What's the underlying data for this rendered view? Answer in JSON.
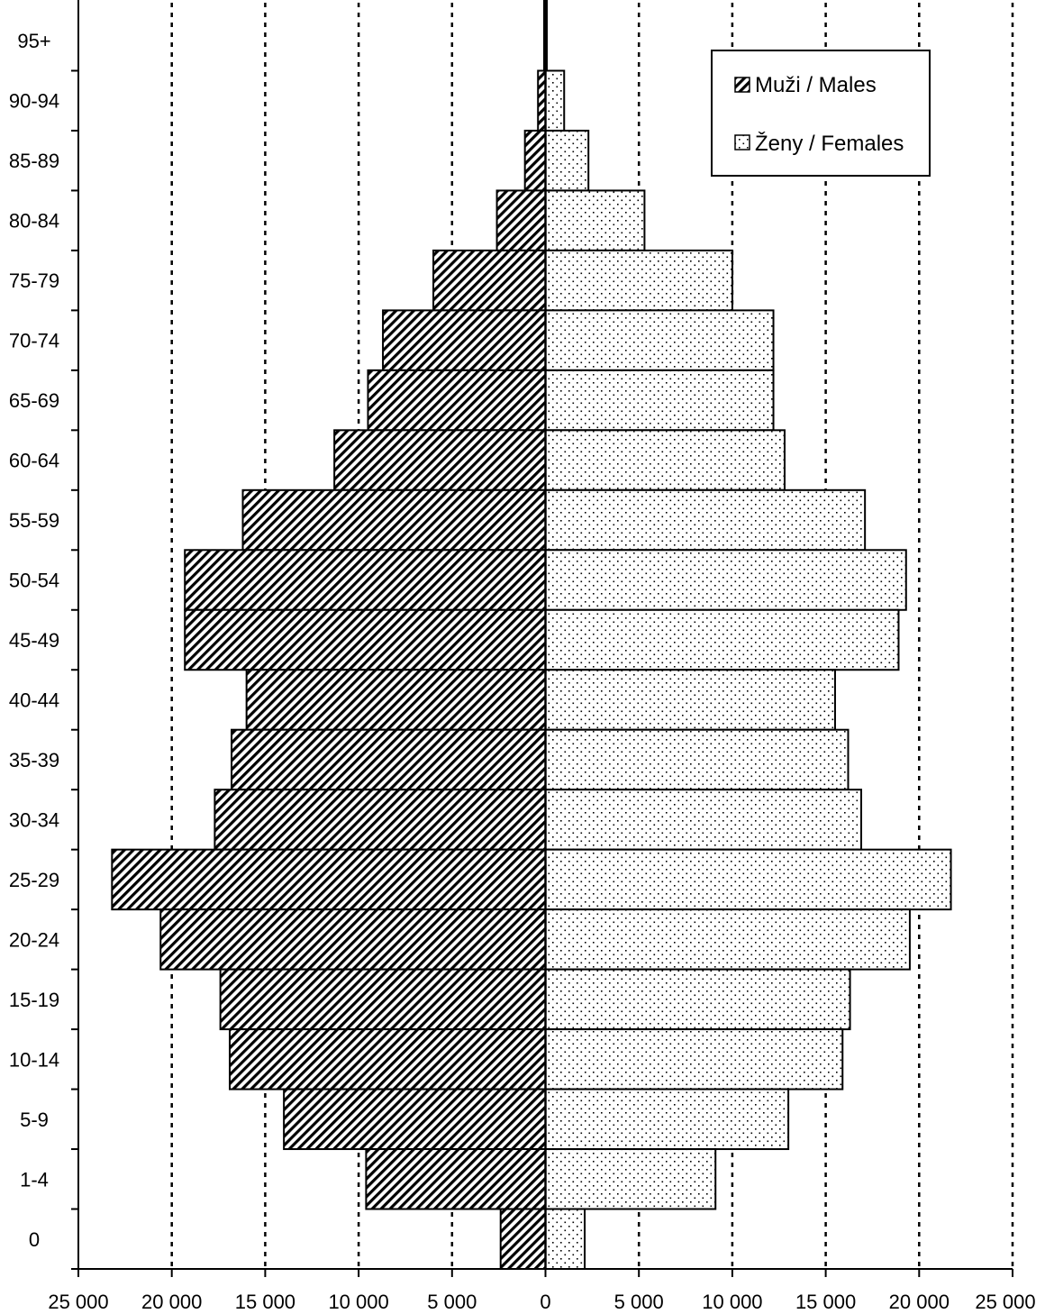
{
  "chart_data": {
    "type": "bar",
    "orientation": "horizontal",
    "title": "",
    "categories": [
      "95+",
      "90-94",
      "85-89",
      "80-84",
      "75-79",
      "70-74",
      "65-69",
      "60-64",
      "55-59",
      "50-54",
      "45-49",
      "40-44",
      "35-39",
      "30-34",
      "25-29",
      "20-24",
      "15-19",
      "10-14",
      "5-9",
      "1-4",
      "0"
    ],
    "series": [
      {
        "name": "Muži / Males",
        "side": "left",
        "pattern": "diagonal-hatch",
        "values": [
          50,
          400,
          1100,
          2600,
          6000,
          8700,
          9500,
          11300,
          16200,
          19300,
          19300,
          16000,
          16800,
          17700,
          23200,
          20600,
          17400,
          16900,
          14000,
          9600,
          2400
        ]
      },
      {
        "name": "Ženy / Females",
        "side": "right",
        "pattern": "dotted",
        "values": [
          50,
          1000,
          2300,
          5300,
          10000,
          12200,
          12200,
          12800,
          17100,
          19300,
          18900,
          15500,
          16200,
          16900,
          21700,
          19500,
          16300,
          15900,
          13000,
          9100,
          2100
        ]
      }
    ],
    "xlim": [
      -25000,
      25000
    ],
    "x_tick_values": [
      -25000,
      -20000,
      -15000,
      -10000,
      -5000,
      0,
      5000,
      10000,
      15000,
      20000,
      25000
    ],
    "x_tick_labels": [
      "25 000",
      "20 000",
      "15 000",
      "10 000",
      "5 000",
      "0",
      "5 000",
      "10 000",
      "15 000",
      "20 000",
      "25 000"
    ],
    "gridlines": "dotted-vertical",
    "legend_position": "top-right",
    "legend": [
      {
        "marker": "diagonal-hatch",
        "label": "Muži / Males"
      },
      {
        "marker": "dotted",
        "label": "Ženy / Females"
      }
    ]
  }
}
